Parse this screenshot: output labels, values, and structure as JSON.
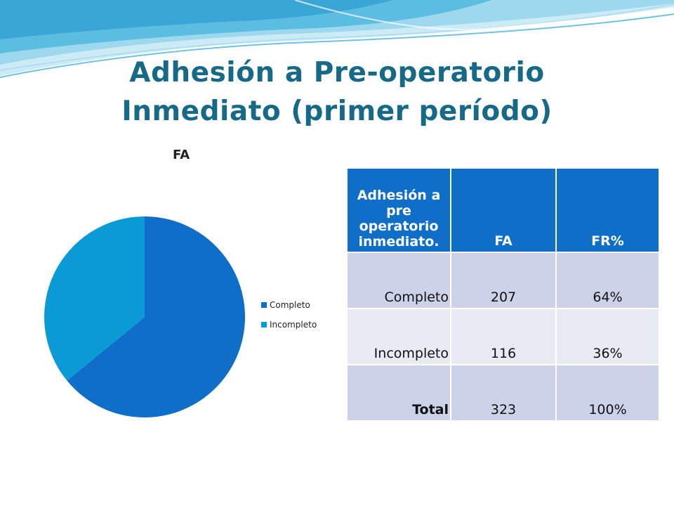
{
  "slide": {
    "title_line1": "Adhesión a Pre-operatorio",
    "title_line2": "Inmediato (primer período)"
  },
  "colors": {
    "title": "#176a87",
    "header_bg": "#0f6ec8",
    "row_odd": "#ccd3e9",
    "row_even": "#e8eaf4",
    "wave_light": "#bfe4f3",
    "wave_mid": "#5bbde0"
  },
  "chart_data": {
    "type": "pie",
    "title": "FA",
    "categories": [
      "Completo",
      "Incompleto"
    ],
    "values": [
      207,
      116
    ],
    "colors": [
      "#0f6ec8",
      "#0a9ad6"
    ],
    "legend_position": "right"
  },
  "table": {
    "headers": [
      "Adhesión a pre operatorio inmediato.",
      "FA",
      "FR%"
    ],
    "rows": [
      {
        "label": "Completo",
        "fa": "207",
        "fr": "64%"
      },
      {
        "label": "Incompleto",
        "fa": "116",
        "fr": "36%"
      },
      {
        "label": "Total",
        "fa": "323",
        "fr": "100%"
      }
    ]
  }
}
